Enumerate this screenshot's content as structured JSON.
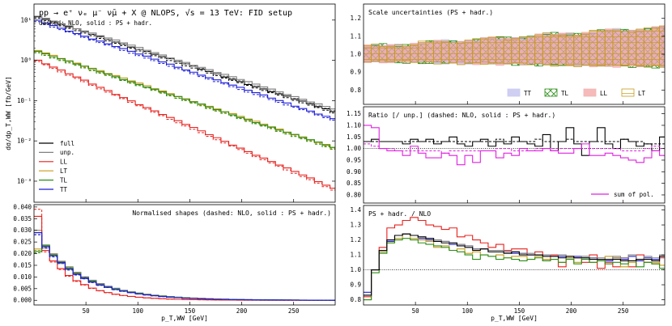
{
  "figure": {
    "title": "pp → e⁺ νₑ μ⁻ ν̄μ + X @ NLOPS, √s = 13 TeV: FID setup",
    "subtitle": "dashed: NLO, solid : PS + hadr.",
    "xlabel": "p_T,WW  [GeV]",
    "colors": {
      "full": "#000000",
      "unp": "#808080",
      "LL": "#e8201c",
      "LT": "#c89a19",
      "TL": "#2a8d16",
      "TT": "#1c1cd8",
      "sum": "#e020e0"
    }
  },
  "chart_data": [
    {
      "id": "main",
      "type": "line",
      "title": "pp → e⁺ νₑ μ⁻ ν̄μ + X @ NLOPS, √s = 13 TeV: FID setup",
      "subtitle": "dashed: NLO, solid : PS + hadr.",
      "ylabel": "dσ/dp_T,WW  [fb/GeV]",
      "yscale": "log",
      "ylim": [
        0.0003,
        25
      ],
      "xlim": [
        0,
        290
      ],
      "yticks": [
        {
          "v": 10,
          "label": "10¹"
        },
        {
          "v": 1,
          "label": "10⁰"
        },
        {
          "v": 0.1,
          "label": "10⁻¹"
        },
        {
          "v": 0.01,
          "label": "10⁻²"
        },
        {
          "v": 0.001,
          "label": "10⁻³"
        }
      ],
      "legend": [
        "full",
        "unp.",
        "LL",
        "LT",
        "TL",
        "TT"
      ],
      "legend_position": "lower-left",
      "series": [
        {
          "name": "full",
          "color": "#000000",
          "y0": 13,
          "k": 0.019
        },
        {
          "name": "unp.",
          "color": "#808080",
          "y0": 13.5,
          "k": 0.0186
        },
        {
          "name": "LL",
          "color": "#e8201c",
          "y0": 1.1,
          "k": 0.0257
        },
        {
          "name": "LT",
          "color": "#c89a19",
          "y0": 1.9,
          "k": 0.0194
        },
        {
          "name": "TL",
          "color": "#2a8d16",
          "y0": 1.8,
          "k": 0.0193
        },
        {
          "name": "TT",
          "color": "#1c1cd8",
          "y0": 10.5,
          "k": 0.0197
        }
      ]
    },
    {
      "id": "shapes",
      "type": "line",
      "title": "Normalised shapes (dashed: NLO, solid : PS + hadr.)",
      "xlabel": "p_T,WW  [GeV]",
      "ylim": [
        -0.002,
        0.041
      ],
      "xlim": [
        0,
        290
      ],
      "yticks": [
        0.04,
        0.035,
        0.03,
        0.025,
        0.02,
        0.015,
        0.01,
        0.005,
        0.0
      ],
      "ytick_labels": [
        "0.040",
        "0.035",
        "0.030",
        "0.025",
        "0.020",
        "0.015",
        "0.010",
        "0.005",
        "0.000"
      ],
      "xticks": [
        50,
        100,
        150,
        200,
        250
      ],
      "xtick_labels": [
        "50",
        "100",
        "150",
        "200",
        "250"
      ],
      "first_bin": {
        "full": 0.029,
        "unp.": 0.03,
        "LL": 0.036,
        "LT": 0.022,
        "TL": 0.021,
        "TT": 0.029
      },
      "first_bin_nlo_LL": 0.039
    },
    {
      "id": "scale",
      "type": "area",
      "title": "Scale uncertainties (PS + hadr.)",
      "ylim": [
        0.72,
        1.28
      ],
      "xlim": [
        0,
        290
      ],
      "yticks": [
        1.2,
        1.1,
        1.0,
        0.9,
        0.8
      ],
      "ytick_labels": [
        "1.2",
        "1.1",
        "1.0",
        "0.9",
        "0.8"
      ],
      "legend": [
        "TT",
        "TL",
        "LL",
        "LT"
      ],
      "legend_position": "bottom-right",
      "band_lo_start": 0.96,
      "band_lo_end": 0.93,
      "band_hi_start": 1.04,
      "band_hi_end": 1.15
    },
    {
      "id": "ratio",
      "type": "line",
      "title": "Ratio [/ unp.] (dashed: NLO, solid : PS + hadr.)",
      "ylim": [
        0.765,
        1.18
      ],
      "xlim": [
        0,
        290
      ],
      "yticks": [
        1.15,
        1.1,
        1.05,
        1.0,
        0.95,
        0.9,
        0.85,
        0.8
      ],
      "ytick_labels": [
        "1.15",
        "1.10",
        "1.05",
        "1.00",
        "0.95",
        "0.90",
        "0.85",
        "0.80"
      ],
      "legend": [
        "sum of pol."
      ],
      "legend_position": "bottom-right",
      "series": [
        {
          "name": "full PS",
          "color": "#000000",
          "values": [
            1.03,
            1.04,
            1.03,
            1.03,
            1.03,
            1.02,
            1.04,
            1.03,
            1.04,
            1.02,
            1.03,
            1.05,
            1.02,
            1.01,
            1.03,
            1.04,
            1.01,
            1.03,
            1.02,
            1.05,
            1.03,
            1.02,
            1.01,
            1.06,
            0.99,
            1.03,
            1.09,
            1.02,
            0.97,
            1.03,
            1.09,
            1.02,
            1.0,
            1.04,
            1.03,
            1.01,
            1.02,
            0.99,
            1.05,
            1.03
          ]
        },
        {
          "name": "full NLO",
          "color": "#000000",
          "values": [
            1.03,
            1.03,
            1.03,
            1.03,
            1.03,
            1.03,
            1.03,
            1.03,
            1.03,
            1.03,
            1.03,
            1.03,
            1.03,
            1.03,
            1.03,
            1.03,
            1.03,
            1.04,
            1.03,
            1.03,
            1.03,
            1.03,
            1.04,
            1.03,
            1.03,
            1.03,
            1.04,
            1.03,
            1.03,
            1.03,
            1.03,
            1.03,
            1.03,
            1.04,
            1.03,
            1.03,
            1.02,
            1.02,
            1.02,
            1.02
          ]
        },
        {
          "name": "sum PS",
          "color": "#e020e0",
          "values": [
            1.1,
            1.09,
            1.0,
            0.99,
            0.99,
            0.97,
            1.01,
            0.98,
            0.96,
            0.96,
            0.98,
            0.97,
            0.93,
            0.97,
            0.94,
            0.99,
            0.99,
            0.96,
            0.98,
            0.97,
            1.0,
            0.99,
            0.99,
            1.0,
            0.99,
            0.98,
            0.98,
            1.0,
            1.02,
            0.97,
            0.97,
            0.98,
            0.97,
            0.96,
            0.95,
            0.94,
            0.96,
            0.99,
            0.97,
            0.93
          ]
        },
        {
          "name": "sum NLO",
          "color": "#e020e0",
          "values": [
            1.02,
            1.01,
            1.0,
            1.0,
            0.99,
            0.99,
            0.99,
            0.99,
            0.99,
            0.99,
            0.98,
            0.99,
            0.99,
            0.99,
            0.99,
            0.99,
            0.99,
            1.0,
            1.0,
            0.99,
            0.99,
            0.99,
            1.0,
            1.0,
            1.0,
            1.0,
            1.0,
            1.0,
            1.0,
            1.0,
            1.0,
            1.0,
            1.0,
            0.99,
            0.99,
            0.99,
            1.0,
            1.01,
            1.0,
            1.0
          ]
        }
      ]
    },
    {
      "id": "psnlo",
      "type": "line",
      "title": "PS + hadr. / NLO",
      "xlabel": "p_T,WW  [GeV]",
      "ylim": [
        0.765,
        1.43
      ],
      "xlim": [
        0,
        290
      ],
      "yticks": [
        1.4,
        1.3,
        1.2,
        1.1,
        1.0,
        0.9,
        0.8
      ],
      "ytick_labels": [
        "1.4",
        "1.3",
        "1.2",
        "1.1",
        "1.0",
        "0.9",
        "0.8"
      ],
      "xticks": [
        50,
        100,
        150,
        200,
        250
      ],
      "xtick_labels": [
        "50",
        "100",
        "150",
        "200",
        "250"
      ],
      "series": [
        {
          "name": "LL",
          "color": "#e8201c",
          "values": [
            0.82,
            1.0,
            1.15,
            1.28,
            1.3,
            1.33,
            1.35,
            1.33,
            1.3,
            1.29,
            1.27,
            1.28,
            1.22,
            1.23,
            1.2,
            1.18,
            1.15,
            1.17,
            1.13,
            1.14,
            1.14,
            1.1,
            1.12,
            1.06,
            1.1,
            1.02,
            1.09,
            1.08,
            1.05,
            1.1,
            1.01,
            1.05,
            1.02,
            1.08,
            1.02,
            1.1,
            1.05,
            1.04,
            1.08,
            1.06
          ]
        },
        {
          "name": "TT",
          "color": "#1c1cd8",
          "values": [
            0.85,
            1.0,
            1.12,
            1.19,
            1.23,
            1.24,
            1.23,
            1.21,
            1.2,
            1.19,
            1.19,
            1.17,
            1.17,
            1.16,
            1.14,
            1.14,
            1.13,
            1.13,
            1.12,
            1.11,
            1.11,
            1.1,
            1.1,
            1.1,
            1.09,
            1.09,
            1.08,
            1.09,
            1.08,
            1.08,
            1.07,
            1.06,
            1.08,
            1.07,
            1.09,
            1.06,
            1.08,
            1.07,
            1.09,
            1.1
          ]
        },
        {
          "name": "LT",
          "color": "#c89a19",
          "values": [
            0.8,
            1.0,
            1.12,
            1.18,
            1.21,
            1.24,
            1.21,
            1.2,
            1.19,
            1.15,
            1.16,
            1.13,
            1.14,
            1.11,
            1.12,
            1.1,
            1.09,
            1.1,
            1.08,
            1.09,
            1.09,
            1.07,
            1.09,
            1.07,
            1.07,
            1.05,
            1.08,
            1.05,
            1.09,
            1.05,
            1.06,
            1.09,
            1.08,
            1.02,
            1.05,
            1.07,
            1.05,
            1.05,
            1.03,
            0.99
          ]
        },
        {
          "name": "TL",
          "color": "#2a8d16",
          "values": [
            0.8,
            0.98,
            1.11,
            1.18,
            1.2,
            1.21,
            1.2,
            1.18,
            1.17,
            1.16,
            1.15,
            1.13,
            1.12,
            1.1,
            1.07,
            1.1,
            1.09,
            1.07,
            1.08,
            1.07,
            1.06,
            1.07,
            1.08,
            1.06,
            1.07,
            1.05,
            1.07,
            1.04,
            1.07,
            1.05,
            1.06,
            1.04,
            1.05,
            1.04,
            1.06,
            1.02,
            1.05,
            1.04,
            1.01,
            1.02
          ]
        },
        {
          "name": "unp.",
          "color": "#808080",
          "values": [
            0.83,
            1.0,
            1.13,
            1.2,
            1.23,
            1.24,
            1.23,
            1.22,
            1.21,
            1.2,
            1.19,
            1.18,
            1.17,
            1.16,
            1.14,
            1.14,
            1.13,
            1.13,
            1.12,
            1.12,
            1.11,
            1.11,
            1.1,
            1.1,
            1.09,
            1.1,
            1.09,
            1.08,
            1.09,
            1.08,
            1.08,
            1.07,
            1.09,
            1.08,
            1.1,
            1.07,
            1.09,
            1.08,
            1.1,
            1.09
          ]
        },
        {
          "name": "full",
          "color": "#000000",
          "values": [
            0.83,
            1.0,
            1.13,
            1.2,
            1.23,
            1.24,
            1.23,
            1.22,
            1.21,
            1.19,
            1.18,
            1.18,
            1.16,
            1.15,
            1.13,
            1.14,
            1.12,
            1.12,
            1.11,
            1.12,
            1.1,
            1.1,
            1.1,
            1.09,
            1.09,
            1.08,
            1.09,
            1.08,
            1.08,
            1.07,
            1.07,
            1.07,
            1.07,
            1.06,
            1.06,
            1.07,
            1.07,
            1.06,
            1.09,
            1.09
          ]
        }
      ]
    }
  ]
}
